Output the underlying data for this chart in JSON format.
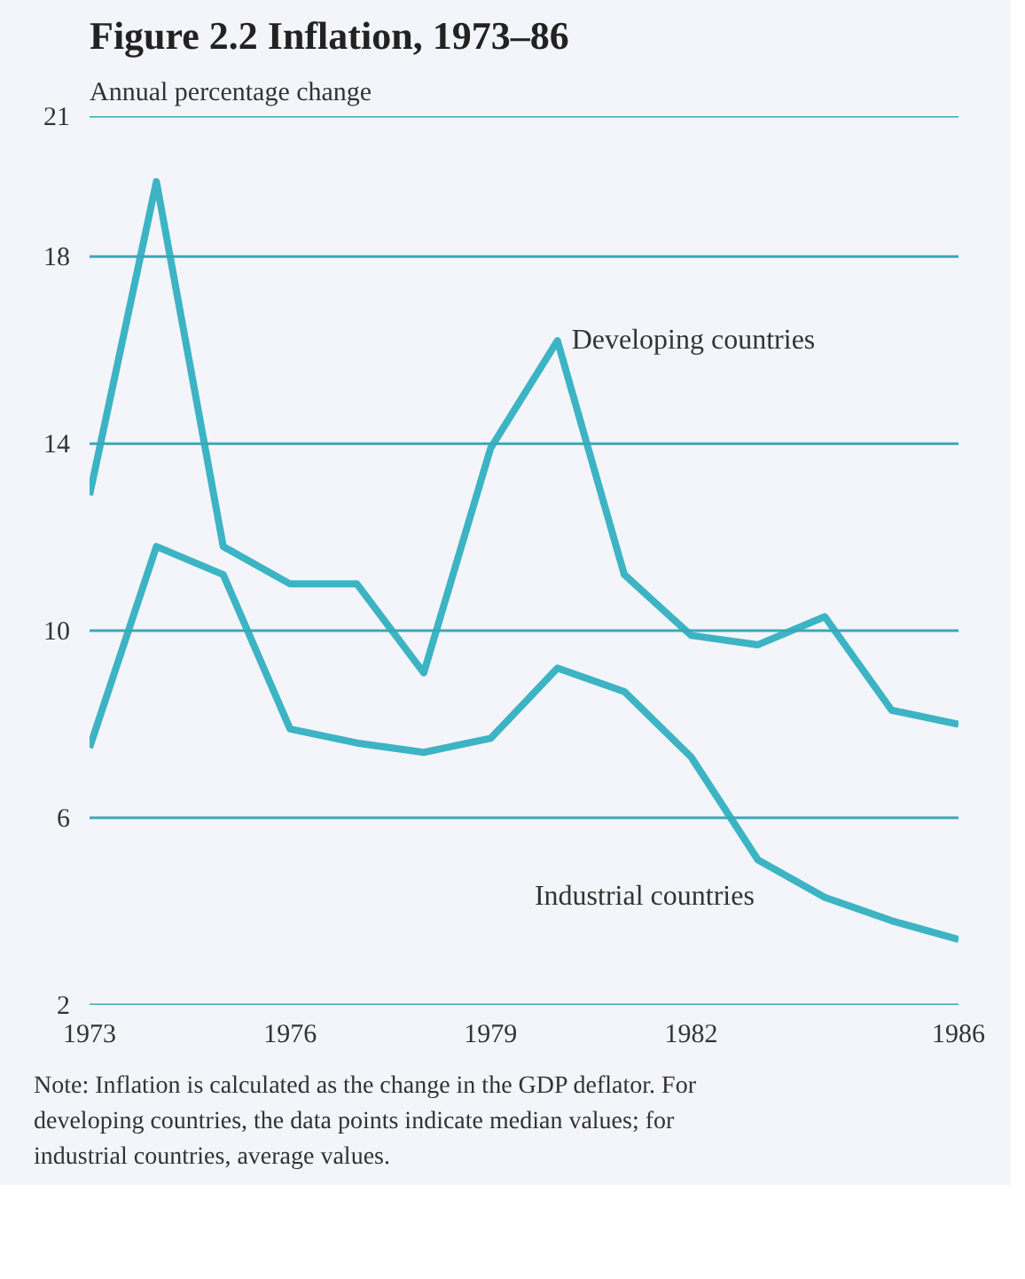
{
  "chart_data": {
    "type": "line",
    "title": "Figure 2.2  Inflation, 1973–86",
    "ylabel": "Annual percentage change",
    "x": [
      1973,
      1974,
      1975,
      1976,
      1977,
      1978,
      1979,
      1980,
      1981,
      1982,
      1983,
      1984,
      1985,
      1986
    ],
    "series": [
      {
        "color": "#3cb4c4",
        "values": [
          12.9,
          19.6,
          11.8,
          11.0,
          11.0,
          9.1,
          13.9,
          16.2,
          11.2,
          9.9,
          9.7,
          10.3,
          8.3,
          8.0
        ]
      },
      {
        "color": "#3cb4c4",
        "values": [
          7.5,
          11.8,
          11.2,
          7.9,
          7.6,
          7.4,
          7.7,
          9.2,
          8.7,
          7.3,
          5.1,
          4.3,
          3.8,
          3.4
        ]
      }
    ],
    "xlim": [
      1973,
      1986
    ],
    "xticks": [
      1973,
      1976,
      1979,
      1982,
      1986
    ],
    "ylim": [
      2,
      21
    ],
    "yticks": [
      2,
      6,
      10,
      14,
      18,
      21
    ],
    "grid": "y",
    "annotations": [
      {
        "text": "Developing countries",
        "x": 1980,
        "y": 16.2
      },
      {
        "text": "Industrial countries",
        "x": 1983,
        "y": 5.1
      },
      "Note: Inflation is calculated as the change in the GDP deflator. For developing countries, the data points indicate median values; for industrial countries, average values."
    ]
  }
}
